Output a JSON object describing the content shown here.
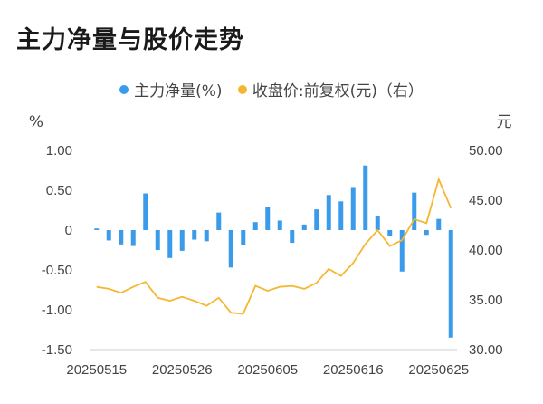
{
  "title": "主力净量与股价走势",
  "legend": {
    "left_series": "主力净量(%)",
    "right_series": "收盘价:前复权(元)（右）"
  },
  "colors": {
    "bar": "#3a9bea",
    "line": "#f5b731"
  },
  "chart_data": {
    "type": "bar+line",
    "title": "主力净量与股价走势",
    "left_axis": {
      "unit": "%",
      "ylim": [
        -1.5,
        1.0
      ],
      "ticks": [
        "1.00",
        "0.50",
        "0",
        "-0.50",
        "-1.00",
        "-1.50"
      ],
      "tick_values": [
        1.0,
        0.5,
        0,
        -0.5,
        -1.0,
        -1.5
      ]
    },
    "right_axis": {
      "unit": "元",
      "ylim": [
        30,
        50
      ],
      "ticks": [
        "50.00",
        "45.00",
        "40.00",
        "35.00",
        "30.00"
      ],
      "tick_values": [
        50,
        45,
        40,
        35,
        30
      ]
    },
    "x_tick_labels": [
      "20250515",
      "20250526",
      "20250605",
      "20250616",
      "20250625"
    ],
    "x_tick_indices": [
      0,
      7,
      14,
      21,
      28
    ],
    "series": [
      {
        "name": "主力净量(%)",
        "type": "bar",
        "values": [
          0.02,
          -0.13,
          -0.18,
          -0.2,
          0.46,
          -0.25,
          -0.35,
          -0.26,
          -0.12,
          -0.14,
          0.22,
          -0.47,
          -0.19,
          0.1,
          0.29,
          0.12,
          -0.16,
          0.07,
          0.26,
          0.44,
          0.36,
          0.54,
          0.81,
          0.17,
          -0.07,
          -0.52,
          0.47,
          -0.06,
          0.14,
          -1.35
        ]
      },
      {
        "name": "收盘价:前复权(元)（右）",
        "type": "line",
        "values": [
          36.3,
          36.1,
          35.7,
          36.3,
          36.8,
          35.2,
          34.9,
          35.3,
          34.9,
          34.4,
          35.2,
          33.7,
          33.6,
          36.4,
          35.9,
          36.3,
          36.4,
          36.1,
          36.7,
          38.1,
          37.4,
          38.7,
          40.6,
          42.0,
          40.4,
          41.0,
          43.1,
          42.7,
          47.1,
          44.2
        ]
      }
    ]
  }
}
